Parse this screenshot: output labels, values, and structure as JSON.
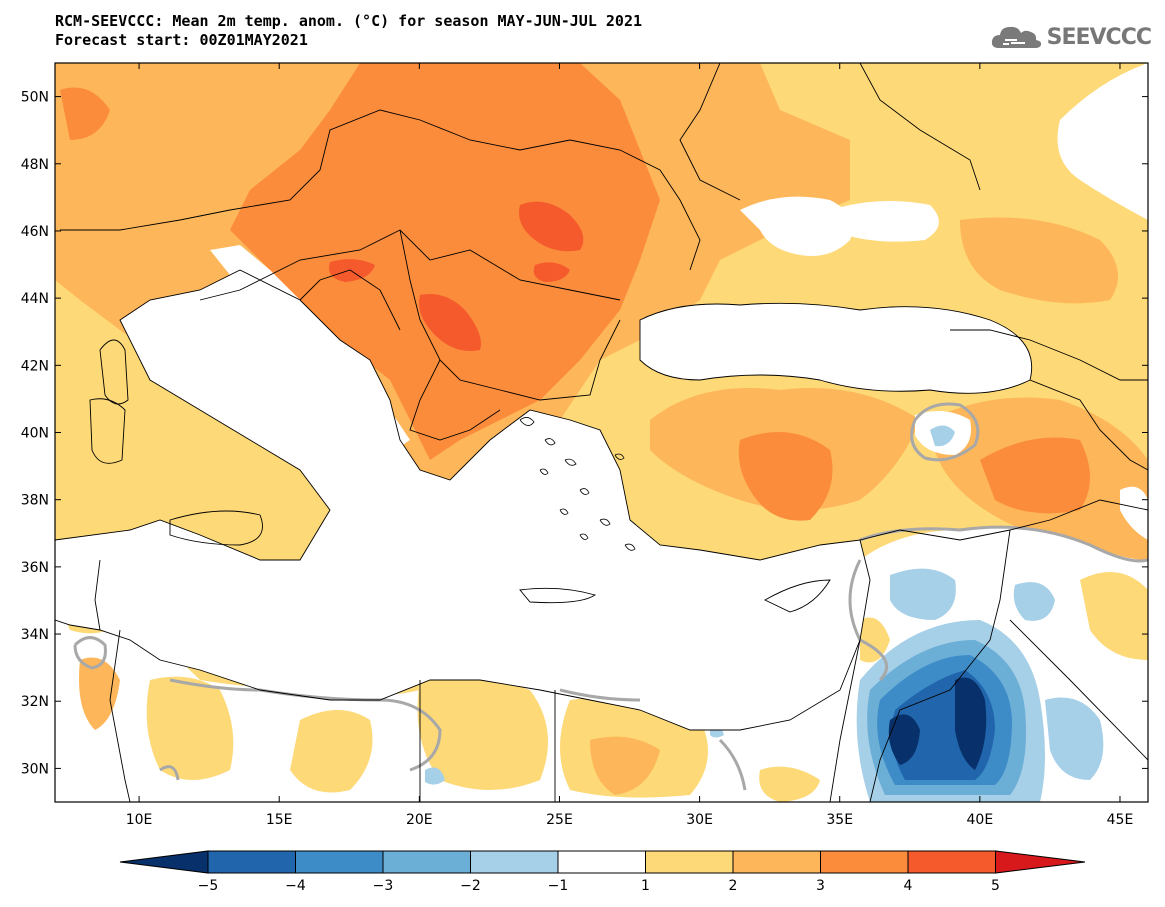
{
  "title": {
    "line1": "RCM-SEEVCCC: Mean 2m temp. anom. (°C) for season MAY-JUN-JUL 2021",
    "line2": "Forecast start: 00Z01MAY2021"
  },
  "logo": {
    "text": "SEEVCCC",
    "icon": "cloud-icon"
  },
  "map": {
    "lon_range": [
      7,
      46
    ],
    "lat_range": [
      29,
      51
    ],
    "lon_ticks": [
      {
        "value": 10,
        "label": "10E"
      },
      {
        "value": 15,
        "label": "15E"
      },
      {
        "value": 20,
        "label": "20E"
      },
      {
        "value": 25,
        "label": "25E"
      },
      {
        "value": 30,
        "label": "30E"
      },
      {
        "value": 35,
        "label": "35E"
      },
      {
        "value": 40,
        "label": "40E"
      },
      {
        "value": 45,
        "label": "45E"
      }
    ],
    "lat_ticks": [
      {
        "value": 50,
        "label": "50N"
      },
      {
        "value": 48,
        "label": "48N"
      },
      {
        "value": 46,
        "label": "46N"
      },
      {
        "value": 44,
        "label": "44N"
      },
      {
        "value": 42,
        "label": "42N"
      },
      {
        "value": 40,
        "label": "40N"
      },
      {
        "value": 38,
        "label": "38N"
      },
      {
        "value": 36,
        "label": "36N"
      },
      {
        "value": 34,
        "label": "34N"
      },
      {
        "value": 32,
        "label": "32N"
      },
      {
        "value": 30,
        "label": "30N"
      }
    ]
  },
  "colorbar": {
    "colors": {
      "below_-5": "#08306b",
      "-5_-4": "#2166ac",
      "-4_-3": "#3d8cc8",
      "-3_-2": "#6baed6",
      "-2_-1": "#a6cfe8",
      "-1_1": "#ffffff",
      "1_2": "#fdd978",
      "2_3": "#fdb659",
      "3_4": "#fb8c3c",
      "4_5": "#f55a2c",
      "above_5": "#d7191c"
    },
    "bins": [
      "-5_-4",
      "-4_-3",
      "-3_-2",
      "-2_-1",
      "-1_1",
      "1_2",
      "2_3",
      "3_4",
      "4_5"
    ],
    "labels": [
      "−5",
      "−4",
      "−3",
      "−2",
      "−1",
      "1",
      "2",
      "3",
      "4",
      "5"
    ]
  }
}
